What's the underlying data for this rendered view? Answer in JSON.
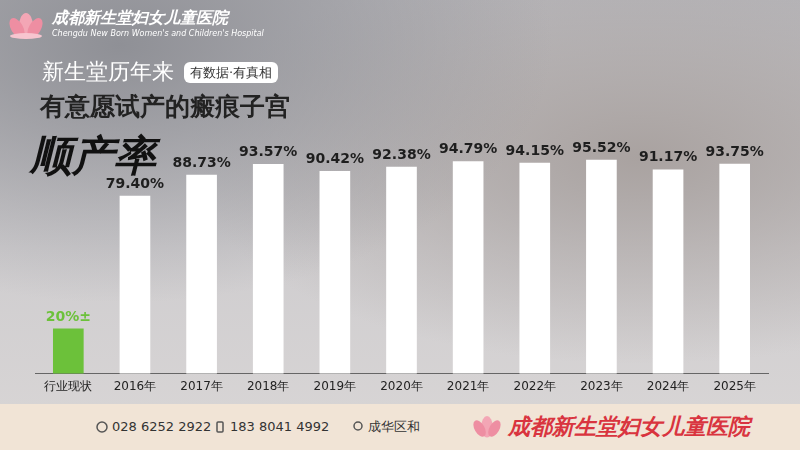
{
  "header": {
    "hospital_name": "成都新生堂妇女儿童医院",
    "hospital_name_en": "Chengdu New Born Women's and Children's Hospital",
    "lead": "新生堂历年来",
    "badge": "有数据·有真相"
  },
  "chart_data": {
    "type": "bar",
    "title": "有意愿试产的瘢痕子宫",
    "subtitle": "顺产率",
    "categories": [
      "行业现状",
      "2016年",
      "2017年",
      "2018年",
      "2019年",
      "2020年",
      "2021年",
      "2022年",
      "2023年",
      "2024年",
      "2025年"
    ],
    "values": [
      20,
      79.4,
      88.73,
      93.57,
      90.42,
      92.38,
      94.79,
      94.15,
      95.52,
      91.17,
      93.75
    ],
    "value_labels": [
      "20%±",
      "79.40%",
      "88.73%",
      "93.57%",
      "90.42%",
      "92.38%",
      "94.79%",
      "94.15%",
      "95.52%",
      "91.17%",
      "93.75%"
    ],
    "colors": [
      "#6cc13a",
      "#ffffff",
      "#ffffff",
      "#ffffff",
      "#ffffff",
      "#ffffff",
      "#ffffff",
      "#ffffff",
      "#ffffff",
      "#ffffff",
      "#ffffff"
    ],
    "ylim": [
      0,
      100
    ],
    "grid": false,
    "data_labels": true,
    "tick_labels": "x"
  },
  "footer": {
    "phones": [
      "028 6252 2922",
      "183 8041 4992"
    ],
    "address": "成华区和",
    "brand": "成都新生堂妇女儿童医院"
  }
}
